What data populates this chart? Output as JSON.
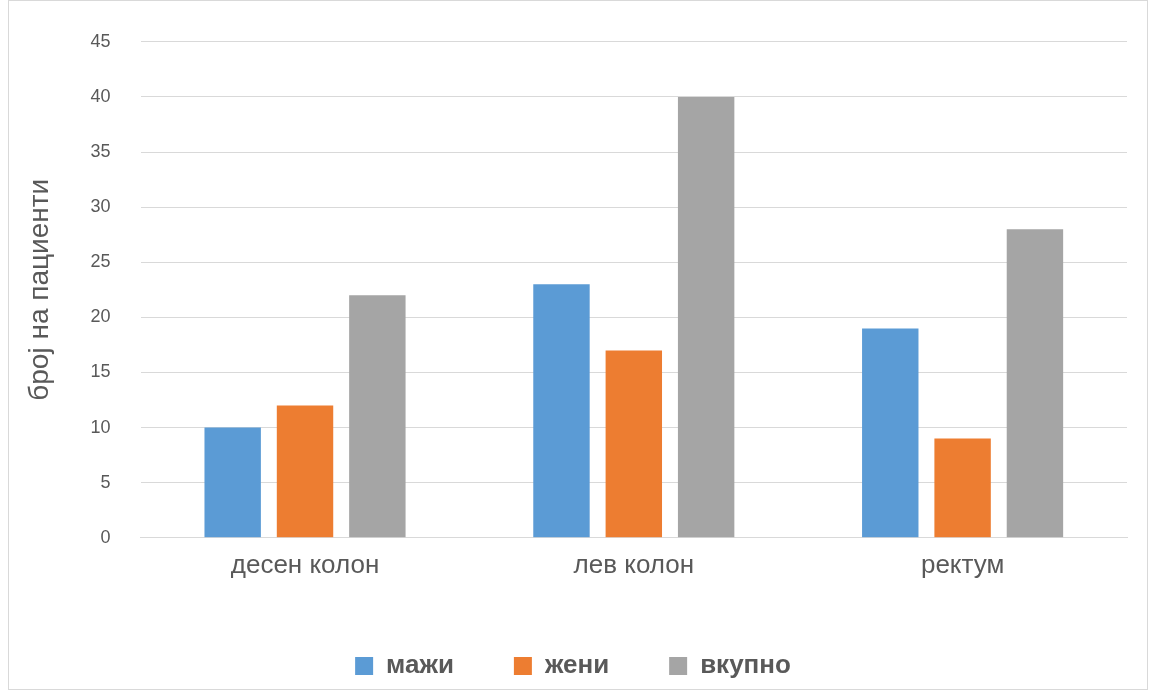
{
  "chart_data": {
    "type": "bar",
    "ylabel": "број на пациенти",
    "categories": [
      "десен колон",
      "лев колон",
      "ректум"
    ],
    "series": [
      {
        "name": "мажи",
        "color": "#5b9bd5",
        "values": [
          10,
          23,
          19
        ]
      },
      {
        "name": "жени",
        "color": "#ed7d31",
        "values": [
          12,
          17,
          9
        ]
      },
      {
        "name": "вкупно",
        "color": "#a5a5a5",
        "values": [
          22,
          40,
          28
        ]
      }
    ],
    "ylim": [
      0,
      45
    ],
    "yticks": [
      0,
      5,
      10,
      15,
      20,
      25,
      30,
      35,
      40,
      45
    ],
    "grid": "y",
    "legend": "bottom"
  }
}
